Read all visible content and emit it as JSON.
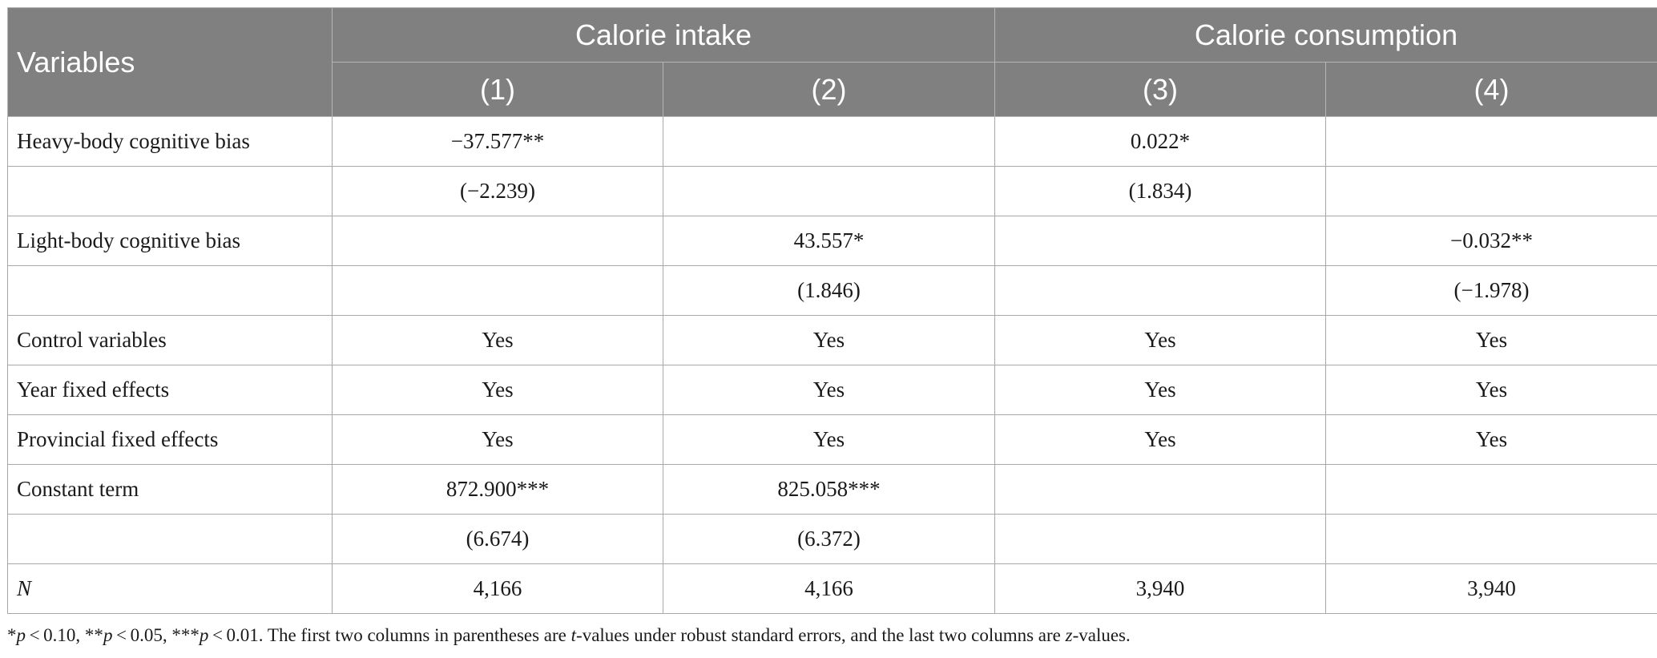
{
  "table": {
    "header": {
      "variables_label": "Variables",
      "group_labels": [
        "Calorie intake",
        "Calorie consumption"
      ],
      "column_numbers": [
        "(1)",
        "(2)",
        "(3)",
        "(4)"
      ]
    },
    "rows": [
      {
        "label": "Heavy-body cognitive bias",
        "cells": [
          "−37.577**",
          "",
          "0.022*",
          ""
        ]
      },
      {
        "label": "",
        "cells": [
          "(−2.239)",
          "",
          "(1.834)",
          ""
        ]
      },
      {
        "label": "Light-body cognitive bias",
        "cells": [
          "",
          "43.557*",
          "",
          "−0.032**"
        ]
      },
      {
        "label": "",
        "cells": [
          "",
          "(1.846)",
          "",
          "(−1.978)"
        ]
      },
      {
        "label": "Control variables",
        "cells": [
          "Yes",
          "Yes",
          "Yes",
          "Yes"
        ]
      },
      {
        "label": "Year fixed effects",
        "cells": [
          "Yes",
          "Yes",
          "Yes",
          "Yes"
        ]
      },
      {
        "label": "Provincial fixed effects",
        "cells": [
          "Yes",
          "Yes",
          "Yes",
          "Yes"
        ]
      },
      {
        "label": "Constant term",
        "cells": [
          "872.900***",
          "825.058***",
          "",
          ""
        ]
      },
      {
        "label": "",
        "cells": [
          "(6.674)",
          "(6.372)",
          "",
          ""
        ]
      },
      {
        "label": "N",
        "cells": [
          "4,166",
          "4,166",
          "3,940",
          "3,940"
        ]
      }
    ]
  },
  "footnote": {
    "s1": "*",
    "p1": "p",
    "s2": " < 0.10, **",
    "p2": "p",
    "s3": " < 0.05, ***",
    "p3": "p",
    "s4": " < 0.01. The first two columns in parentheses are ",
    "t": "t",
    "s5": "-values under robust standard errors, and the last two columns are ",
    "z": "z",
    "s6": "-values."
  }
}
